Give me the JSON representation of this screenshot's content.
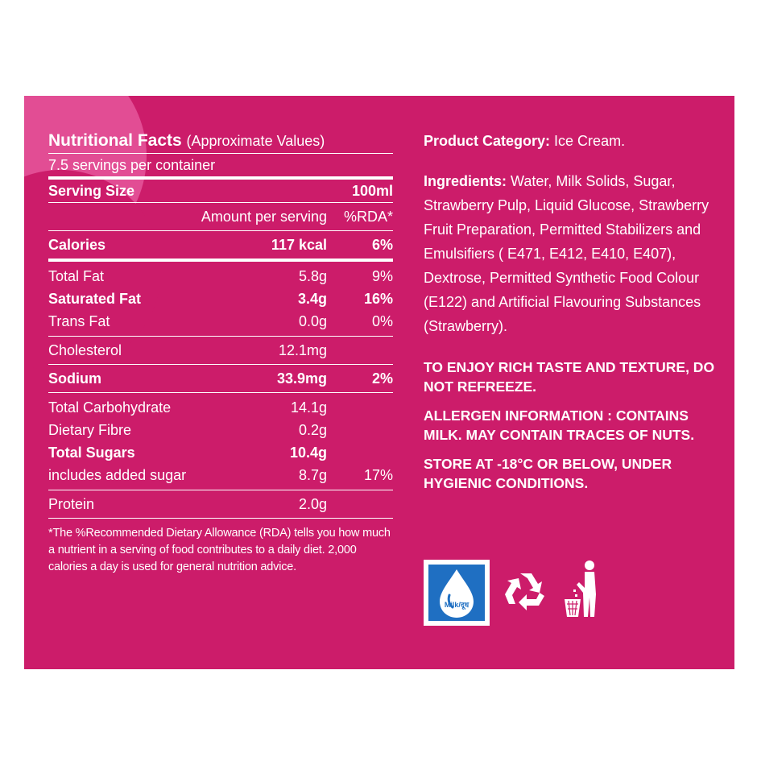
{
  "nutrition": {
    "title": "Nutritional Facts",
    "title_note": "(Approximate Values)",
    "servings": "7.5 servings per container",
    "serving_size_label": "Serving Size",
    "serving_size_value": "100ml",
    "amount_header": "Amount per serving",
    "rda_header": "%RDA*",
    "calories": {
      "label": "Calories",
      "amount": "117 kcal",
      "rda": "6%"
    },
    "total_fat": {
      "label": "Total Fat",
      "amount": "5.8g",
      "rda": "9%"
    },
    "saturated_fat": {
      "label": "Saturated Fat",
      "amount": "3.4g",
      "rda": "16%"
    },
    "trans_fat": {
      "label": "Trans Fat",
      "amount": "0.0g",
      "rda": "0%"
    },
    "cholesterol": {
      "label": "Cholesterol",
      "amount": "12.1mg",
      "rda": ""
    },
    "sodium": {
      "label": "Sodium",
      "amount": "33.9mg",
      "rda": "2%"
    },
    "total_carb": {
      "label": "Total Carbohydrate",
      "amount": "14.1g",
      "rda": ""
    },
    "fibre": {
      "label": "Dietary Fibre",
      "amount": "0.2g",
      "rda": ""
    },
    "total_sugars": {
      "label": "Total Sugars",
      "amount": "10.4g",
      "rda": ""
    },
    "added_sugar": {
      "label": "includes added sugar",
      "amount": "8.7g",
      "rda": "17%"
    },
    "protein": {
      "label": "Protein",
      "amount": "2.0g",
      "rda": ""
    },
    "footnote": "*The %Recommended Dietary Allowance (RDA) tells you how much a nutrient in a serving of food contributes to a daily diet. 2,000 calories a day is used for general nutrition advice."
  },
  "product": {
    "category_label": "Product Category:",
    "category_value": "Ice Cream.",
    "ingredients_label": "Ingredients:",
    "ingredients_text": "Water, Milk Solids, Sugar, Strawberry Pulp, Liquid Glucose, Strawberry Fruit Preparation, Permitted Stabilizers and Emulsifiers ( E471, E412, E410, E407), Dextrose, Permitted Synthetic Food Colour (E122) and Artificial Flavouring Substances (Strawberry).",
    "notice_1": "TO ENJOY RICH TASTE AND TEXTURE, DO NOT REFREEZE.",
    "notice_2": "ALLERGEN INFORMATION : CONTAINS MILK. MAY CONTAIN TRACES OF NUTS.",
    "notice_3": "STORE AT -18°C OR BELOW, UNDER HYGIENIC CONDITIONS."
  },
  "icons": {
    "milk_label": "Milk/दूध",
    "milk_icon": "milk-drop-icon",
    "recycle_icon": "recycle-icon",
    "bin_icon": "dispose-in-bin-icon"
  },
  "colors": {
    "panel": "#cc1c6a",
    "accent": "#e24d94",
    "milk_blue": "#1f6fc2"
  }
}
